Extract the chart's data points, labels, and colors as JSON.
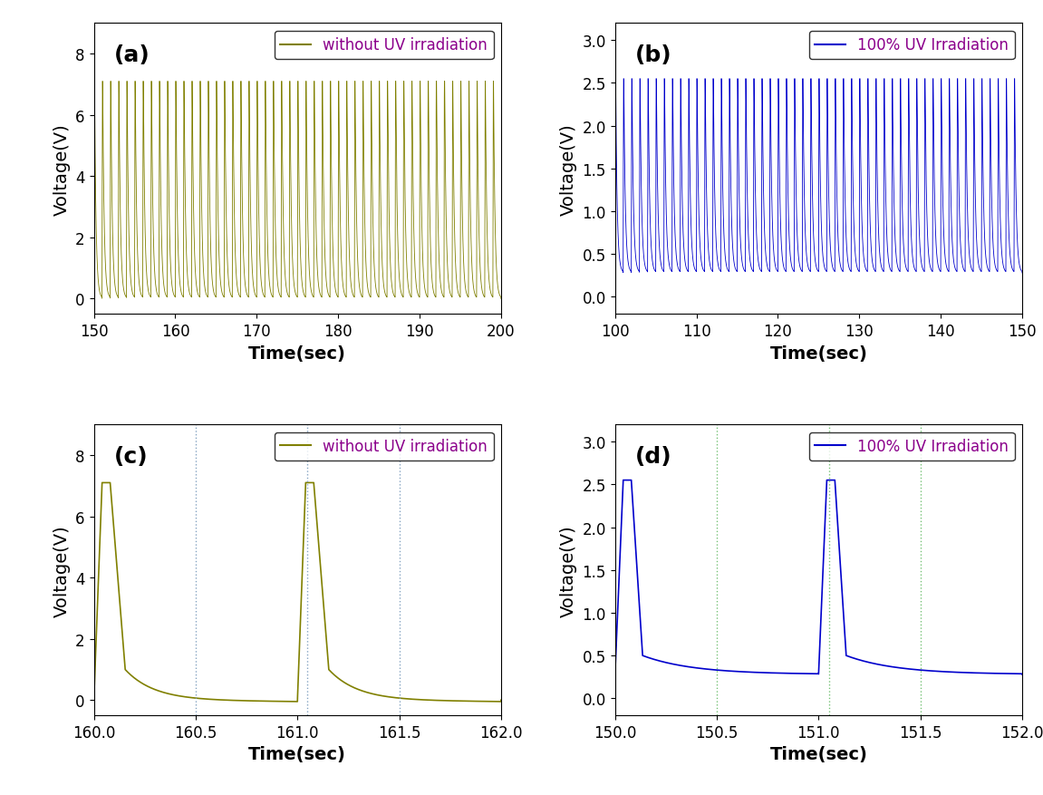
{
  "panel_a": {
    "label": "without UV irradiation",
    "color": "#808000",
    "xlim": [
      150,
      200
    ],
    "ylim": [
      -0.5,
      9.0
    ],
    "yticks": [
      0,
      2,
      4,
      6,
      8
    ],
    "xticks": [
      150,
      160,
      170,
      180,
      190,
      200
    ],
    "xlabel": "Time(sec)",
    "ylabel": "Voltage(V)",
    "tag": "(a)",
    "v_high": 7.1,
    "v_low": 0.0,
    "t_start": 150,
    "t_end": 200,
    "period": 1.0,
    "duty_high": 0.08,
    "decay_rate": 5.0,
    "v_base": 0.0
  },
  "panel_b": {
    "label": "100% UV Irradiation",
    "color": "#0000CC",
    "xlim": [
      100,
      150
    ],
    "ylim": [
      -0.2,
      3.2
    ],
    "yticks": [
      0.0,
      0.5,
      1.0,
      1.5,
      2.0,
      2.5,
      3.0
    ],
    "xticks": [
      100,
      110,
      120,
      130,
      140,
      150
    ],
    "xlabel": "Time(sec)",
    "ylabel": "Voltage(V)",
    "tag": "(b)",
    "v_high": 2.55,
    "v_low": 0.28,
    "t_start": 100,
    "t_end": 150,
    "period": 1.0,
    "duty_high": 0.08,
    "decay_rate": 5.0,
    "v_base": 0.28
  },
  "panel_c": {
    "label": "without UV irradiation",
    "color": "#808000",
    "xlim": [
      160.0,
      162.0
    ],
    "ylim": [
      -0.5,
      9.0
    ],
    "yticks": [
      0,
      2,
      4,
      6,
      8
    ],
    "xticks": [
      160.0,
      160.5,
      161.0,
      161.5,
      162.0
    ],
    "xlabel": "Time(sec)",
    "ylabel": "Voltage(V)",
    "tag": "(c)",
    "vlines": [
      160.5,
      161.05
    ],
    "vline2": [
      161.5
    ],
    "vline_color": "#7799BB",
    "v_high": 7.1,
    "v_low": 0.0,
    "t_start": 160.0,
    "t_end": 162.0,
    "period": 1.0,
    "decay_rate": 5.0
  },
  "panel_d": {
    "label": "100% UV Irradiation",
    "color": "#0000CC",
    "xlim": [
      150.0,
      152.0
    ],
    "ylim": [
      -0.2,
      3.2
    ],
    "yticks": [
      0.0,
      0.5,
      1.0,
      1.5,
      2.0,
      2.5,
      3.0
    ],
    "xticks": [
      150.0,
      150.5,
      151.0,
      151.5,
      152.0
    ],
    "xlabel": "Time(sec)",
    "ylabel": "Voltage(V)",
    "tag": "(d)",
    "vlines": [
      150.5,
      151.05
    ],
    "vline2": [
      151.5
    ],
    "vline_color": "#66BB66",
    "v_high": 2.55,
    "v_low": 0.28,
    "t_start": 150.0,
    "t_end": 152.0,
    "period": 1.0,
    "decay_rate": 5.0
  },
  "legend_label_color": "#8B008B",
  "tag_fontsize": 18,
  "axis_label_fontsize": 14,
  "tick_fontsize": 12,
  "legend_fontsize": 12,
  "background_color": "#ffffff"
}
